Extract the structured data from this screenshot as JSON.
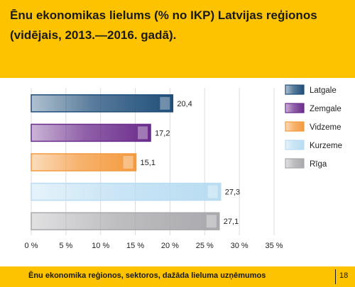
{
  "header": {
    "title": "Ēnu ekonomikas lielums (% no IKP) Latvijas reģionos (vidējais, 2013.—2016. gadā)."
  },
  "footer": {
    "text": "Ēnu ekonomika reģionos, sektoros, dažāda lieluma uzņēmumos",
    "page_number": "18"
  },
  "chart_data": {
    "type": "bar",
    "orientation": "horizontal",
    "categories": [
      "Latgale",
      "Zemgale",
      "Vidzeme",
      "Kurzeme",
      "Rīga"
    ],
    "values": [
      20.4,
      17.2,
      15.1,
      27.3,
      27.1
    ],
    "value_labels": [
      "20,4",
      "17,2",
      "15,1",
      "27,3",
      "27,1"
    ],
    "colors": [
      "#1f4e79",
      "#6b2c8c",
      "#f49a3e",
      "#b8dcf2",
      "#a9a9ad"
    ],
    "xlim": [
      0,
      35
    ],
    "xticks": [
      0,
      5,
      10,
      15,
      20,
      25,
      30,
      35
    ],
    "xtick_labels": [
      "0 %",
      "5 %",
      "10 %",
      "15 %",
      "20 %",
      "25 %",
      "30 %",
      "35 %"
    ],
    "grid": true,
    "legend_position": "right",
    "legend": [
      "Latgale",
      "Zemgale",
      "Vidzeme",
      "Kurzeme",
      "Rīga"
    ]
  }
}
